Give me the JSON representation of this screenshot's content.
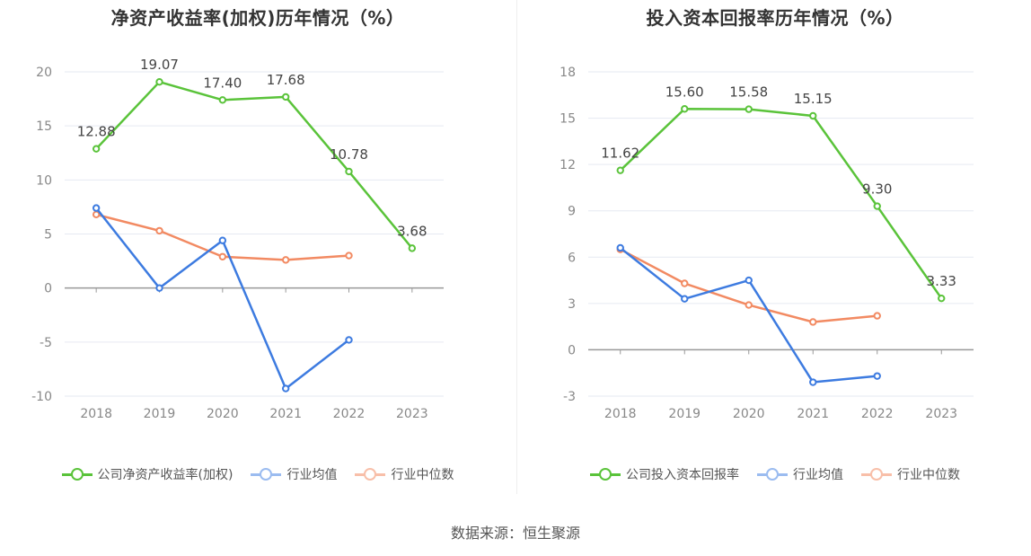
{
  "charts": [
    {
      "title": "净资产收益率(加权)历年情况（%）",
      "legend": [
        "公司净资产收益率(加权)",
        "行业均值",
        "行业中位数"
      ]
    },
    {
      "title": "投入资本回报率历年情况（%）",
      "legend": [
        "公司投入资本回报率",
        "行业均值",
        "行业中位数"
      ]
    }
  ],
  "source": "数据来源：恒生聚源",
  "chart_data": [
    {
      "type": "line",
      "title": "净资产收益率(加权)历年情况（%）",
      "categories": [
        "2018",
        "2019",
        "2020",
        "2021",
        "2022",
        "2023"
      ],
      "ylim": [
        -10,
        20
      ],
      "yticks": [
        -10,
        -5,
        0,
        5,
        10,
        15,
        20
      ],
      "ytick_labels": [
        "-10",
        "-5",
        "0",
        "5",
        "10",
        "15",
        "20"
      ],
      "grid": true,
      "legend_position": "bottom",
      "series": [
        {
          "name": "公司净资产收益率(加权)",
          "color": "#5ac33a",
          "labeled": true,
          "values": [
            12.88,
            19.07,
            17.4,
            17.68,
            10.78,
            3.68
          ],
          "labels": [
            "12.88",
            "19.07",
            "17.40",
            "17.68",
            "10.78",
            "3.68"
          ]
        },
        {
          "name": "行业均值",
          "color": "#3d7be0",
          "labeled": false,
          "values": [
            7.4,
            0.0,
            4.4,
            -9.3,
            -4.8,
            null
          ]
        },
        {
          "name": "行业中位数",
          "color": "#f28a62",
          "labeled": false,
          "values": [
            6.8,
            5.3,
            2.9,
            2.6,
            3.0,
            null
          ]
        }
      ]
    },
    {
      "type": "line",
      "title": "投入资本回报率历年情况（%）",
      "categories": [
        "2018",
        "2019",
        "2020",
        "2021",
        "2022",
        "2023"
      ],
      "ylim": [
        -3,
        18
      ],
      "yticks": [
        -3,
        0,
        3,
        6,
        9,
        12,
        15,
        18
      ],
      "ytick_labels": [
        "-3",
        "0",
        "3",
        "6",
        "9",
        "12",
        "15",
        "18"
      ],
      "grid": true,
      "legend_position": "bottom",
      "series": [
        {
          "name": "公司投入资本回报率",
          "color": "#5ac33a",
          "labeled": true,
          "values": [
            11.62,
            15.6,
            15.58,
            15.15,
            9.3,
            3.33
          ],
          "labels": [
            "11.62",
            "15.60",
            "15.58",
            "15.15",
            "9.30",
            "3.33"
          ]
        },
        {
          "name": "行业均值",
          "color": "#3d7be0",
          "labeled": false,
          "values": [
            6.6,
            3.3,
            4.5,
            -2.1,
            -1.7,
            null
          ]
        },
        {
          "name": "行业中位数",
          "color": "#f28a62",
          "labeled": false,
          "values": [
            6.5,
            4.3,
            2.9,
            1.8,
            2.2,
            null
          ]
        }
      ]
    }
  ]
}
